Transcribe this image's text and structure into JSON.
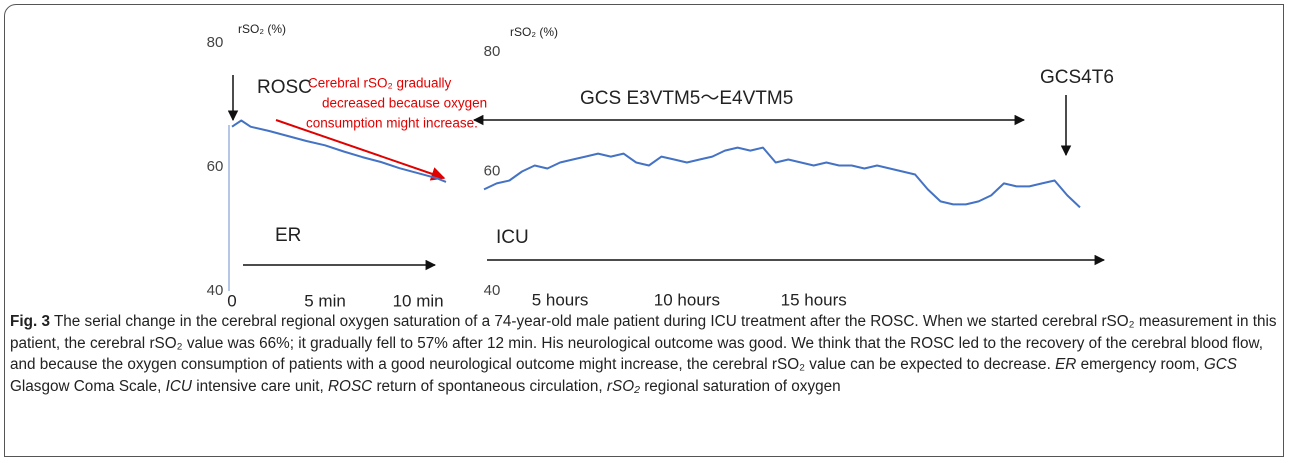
{
  "chart_data": [
    {
      "type": "line",
      "y_label": "rSO₂ (%)",
      "xlim": [
        0,
        11.5
      ],
      "ylim": [
        40,
        80
      ],
      "xticks": [
        0,
        {
          "value": 5,
          "label": "5 min"
        },
        {
          "value": 10,
          "label": "10 min"
        }
      ],
      "yticks": [
        40,
        60,
        80
      ],
      "series": [
        {
          "color": "#4472c4",
          "x": [
            0,
            0.5,
            1,
            2,
            3,
            4,
            5,
            6,
            7,
            8,
            9,
            10,
            11,
            11.5
          ],
          "values": [
            66.5,
            67.5,
            66.5,
            65.8,
            65,
            64.2,
            63.5,
            62.5,
            61.6,
            60.8,
            59.8,
            59,
            58.2,
            57.6
          ]
        }
      ],
      "annotations": {
        "rosc": "ROSC",
        "note": [
          "Cerebral rSO₂ gradually",
          "decreased because oxygen",
          "consumption might increase."
        ],
        "location": "ER"
      }
    },
    {
      "type": "line",
      "y_label": "rSO₂ (%)",
      "xlim": [
        2,
        25.5
      ],
      "ylim": [
        40,
        80
      ],
      "xticks": [
        {
          "value": 5,
          "label": "5 hours"
        },
        {
          "value": 10,
          "label": "10 hours"
        },
        {
          "value": 15,
          "label": "15 hours"
        }
      ],
      "yticks": [
        40,
        60,
        80
      ],
      "series": [
        {
          "color": "#4472c4",
          "x": [
            2,
            2.5,
            3,
            3.5,
            4,
            4.5,
            5,
            5.5,
            6,
            6.5,
            7,
            7.5,
            8,
            8.5,
            9,
            9.5,
            10,
            10.5,
            11,
            11.5,
            12,
            12.5,
            13,
            13.5,
            14,
            14.5,
            15,
            15.5,
            16,
            16.5,
            17,
            17.5,
            18,
            18.5,
            19,
            19.5,
            20,
            20.5,
            21,
            21.5,
            22,
            22.5,
            23,
            23.5,
            24,
            24.5,
            25,
            25.5
          ],
          "values": [
            57,
            58,
            58.5,
            60,
            61,
            60.5,
            61.5,
            62,
            62.5,
            63,
            62.5,
            63,
            61.5,
            61,
            62.5,
            62,
            61.5,
            62,
            62.5,
            63.5,
            64,
            63.5,
            64,
            61.5,
            62,
            61.5,
            61,
            61.5,
            61,
            61,
            60.5,
            61,
            60.5,
            60,
            59.5,
            57,
            55,
            54.5,
            54.5,
            55,
            56,
            58,
            57.5,
            57.5,
            58,
            58.5,
            56,
            54
          ]
        }
      ],
      "annotations": {
        "gcs_range": "GCS E3VTM5～E4VTM5",
        "gcs_end": "GCS4T6",
        "location": "ICU"
      }
    }
  ],
  "caption": {
    "label": "Fig. 3",
    "text": "The serial change in the cerebral regional oxygen saturation of a 74-year-old male patient during ICU treatment after the ROSC. When we started cerebral rSO₂ measurement in this patient, the cerebral rSO₂ value was 66%; it gradually fell to 57% after 12 min. His neurological outcome was good. We think that the ROSC led to the recovery of the cerebral blood flow, and because the oxygen consumption of patients with a good neurological outcome might increase, the cerebral rSO₂ value can be expected to decrease.",
    "abbreviations": [
      {
        "term": "ER",
        "definition": "emergency room,"
      },
      {
        "term": "GCS",
        "definition": "Glasgow Coma Scale,"
      },
      {
        "term": "ICU",
        "definition": "intensive care unit,"
      },
      {
        "term": "ROSC",
        "definition": "return of spontaneous circulation,"
      },
      {
        "term": "rSO₂",
        "definition": "regional saturation of oxygen"
      }
    ]
  }
}
